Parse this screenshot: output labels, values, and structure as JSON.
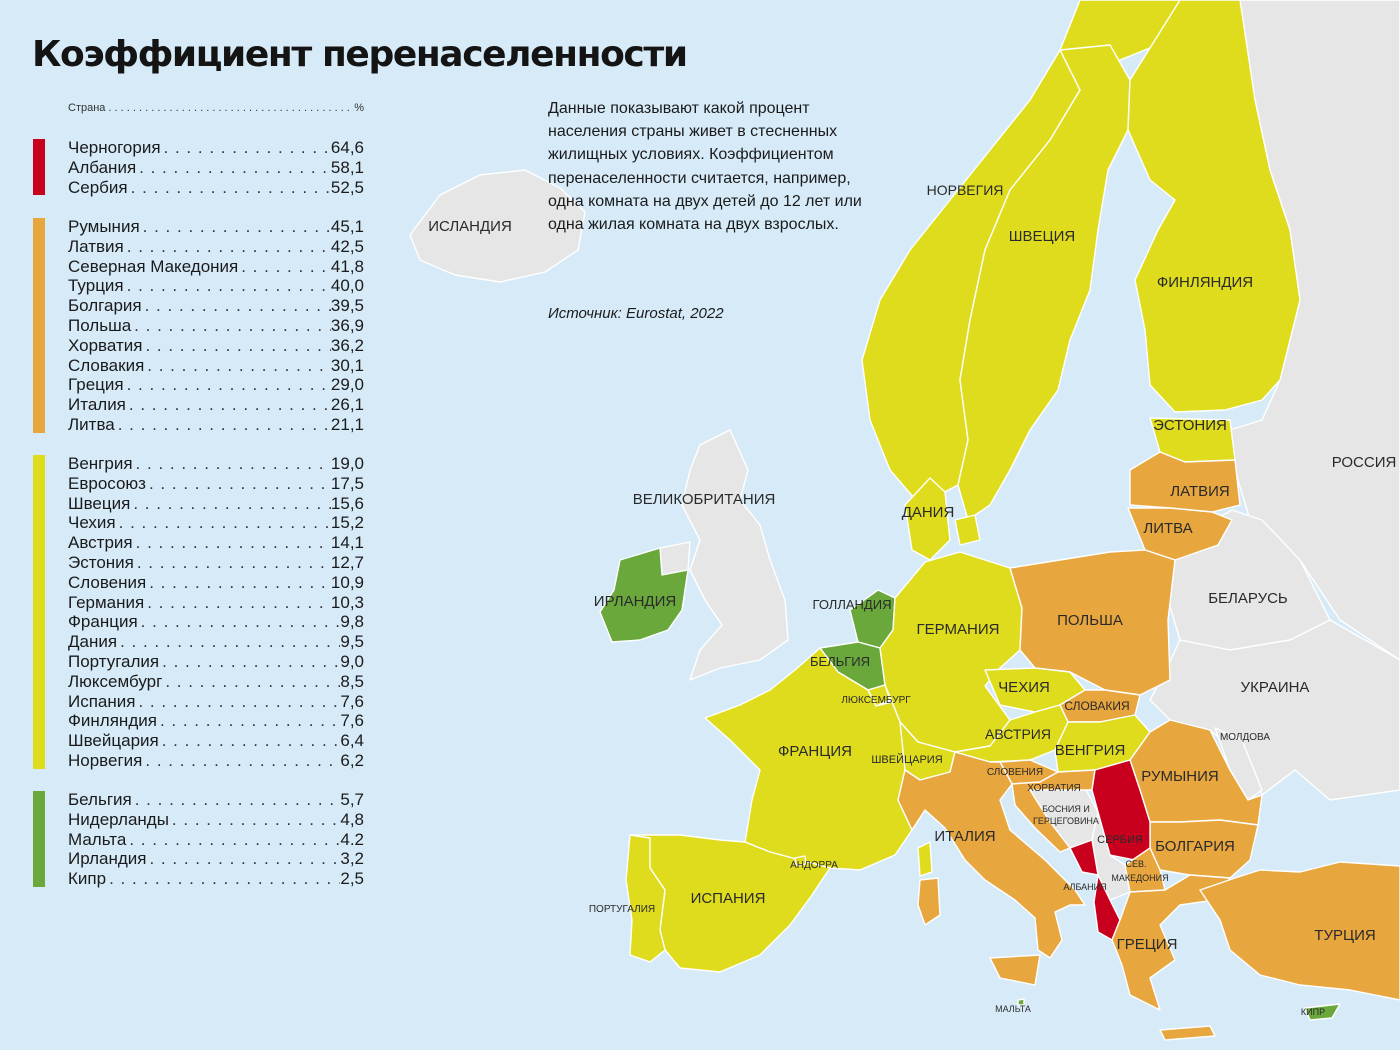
{
  "title": "Коэффициент перенаселенности",
  "legend": {
    "header_country": "Страна",
    "header_unit": "%",
    "groups": [
      {
        "color": "#c8001e",
        "items": [
          {
            "name": "Черногория",
            "value": "64,6"
          },
          {
            "name": "Албания",
            "value": "58,1"
          },
          {
            "name": "Сербия",
            "value": "52,5"
          }
        ]
      },
      {
        "color": "#e8a63f",
        "items": [
          {
            "name": "Румыния",
            "value": "45,1"
          },
          {
            "name": "Латвия",
            "value": "42,5"
          },
          {
            "name": "Северная Македония",
            "value": "41,8"
          },
          {
            "name": "Турция",
            "value": "40,0"
          },
          {
            "name": "Болгария",
            "value": "39,5"
          },
          {
            "name": "Польша",
            "value": "36,9"
          },
          {
            "name": "Хорватия",
            "value": "36,2"
          },
          {
            "name": "Словакия",
            "value": "30,1"
          },
          {
            "name": "Греция",
            "value": "29,0"
          },
          {
            "name": "Италия",
            "value": "26,1"
          },
          {
            "name": "Литва",
            "value": "21,1"
          }
        ]
      },
      {
        "color": "#dfdc1e",
        "items": [
          {
            "name": "Венгрия",
            "value": "19,0"
          },
          {
            "name": "Евросоюз",
            "value": "17,5"
          },
          {
            "name": "Швеция",
            "value": "15,6"
          },
          {
            "name": "Чехия",
            "value": "15,2"
          },
          {
            "name": "Австрия",
            "value": "14,1"
          },
          {
            "name": "Эстония",
            "value": "12,7"
          },
          {
            "name": "Словения",
            "value": "10,9"
          },
          {
            "name": "Германия",
            "value": "10,3"
          },
          {
            "name": "Франция",
            "value": "9,8"
          },
          {
            "name": "Дания",
            "value": "9,5"
          },
          {
            "name": "Португалия",
            "value": "9,0"
          },
          {
            "name": "Люксембург",
            "value": "8,5"
          },
          {
            "name": "Испания",
            "value": "7,6"
          },
          {
            "name": "Финляндия",
            "value": "7,6"
          },
          {
            "name": "Швейцария",
            "value": "6,4"
          },
          {
            "name": "Норвегия",
            "value": "6,2"
          }
        ]
      },
      {
        "color": "#6aa83c",
        "items": [
          {
            "name": "Бельгия",
            "value": "5,7"
          },
          {
            "name": "Нидерланды",
            "value": "4,8"
          },
          {
            "name": "Мальта",
            "value": "4.2"
          },
          {
            "name": "Ирландия",
            "value": "3,2"
          },
          {
            "name": "Кипр",
            "value": "2,5"
          }
        ]
      }
    ]
  },
  "description": "Данные показывают какой процент населения страны живет в стесненных жилищных условиях. Коэффициентом перенаселенности считается, например, одна комната на двух детей до 12 лет или одна жилая комната на двух взрослых.",
  "source": "Источник: Eurostat, 2022",
  "colors": {
    "sea": "#d6eaf8",
    "non_eu": "#e6e6e6",
    "red": "#c8001e",
    "orange": "#e8a63f",
    "yellow": "#dfdc1e",
    "green": "#6aa83c"
  },
  "map_labels": {
    "iceland": "ИСЛАНДИЯ",
    "norway": "НОРВЕГИЯ",
    "sweden": "ШВЕЦИЯ",
    "finland": "ФИНЛЯНДИЯ",
    "estonia": "ЭСТОНИЯ",
    "latvia": "ЛАТВИЯ",
    "lithuania": "ЛИТВА",
    "russia": "РОССИЯ",
    "belarus": "БЕЛАРУСЬ",
    "ukraine": "УКРАИНА",
    "moldova": "МОЛДОВА",
    "uk": "ВЕЛИКОБРИТАНИЯ",
    "ireland": "ИРЛАНДИЯ",
    "denmark": "ДАНИЯ",
    "netherlands": "ГОЛЛАНДИЯ",
    "belgium": "БЕЛЬГИЯ",
    "luxembourg": "ЛЮКСЕМБУРГ",
    "germany": "ГЕРМАНИЯ",
    "poland": "ПОЛЬША",
    "czechia": "ЧЕХИЯ",
    "slovakia": "СЛОВАКИЯ",
    "austria": "АВСТРИЯ",
    "hungary": "ВЕНГРИЯ",
    "romania": "РУМЫНИЯ",
    "france": "ФРАНЦИЯ",
    "switzerland": "ШВЕЙЦАРИЯ",
    "slovenia": "СЛОВЕНИЯ",
    "croatia": "ХОРВАТИЯ",
    "bosnia_1": "БОСНИЯ И",
    "bosnia_2": "ГЕРЦЕГОВИНА",
    "serbia": "СЕРБИЯ",
    "bulgaria": "БОЛГАРИЯ",
    "north_macedonia_1": "СЕВ.",
    "north_macedonia_2": "МАКЕДОНИЯ",
    "albania": "АЛБАНИЯ",
    "italy": "ИТАЛИЯ",
    "andorra": "АНДОРРА",
    "portugal": "ПОРТУГАЛИЯ",
    "spain": "ИСПАНИЯ",
    "greece": "ГРЕЦИЯ",
    "turkey": "ТУРЦИЯ",
    "malta": "МАЛЬТА",
    "cyprus": "КИПР"
  }
}
